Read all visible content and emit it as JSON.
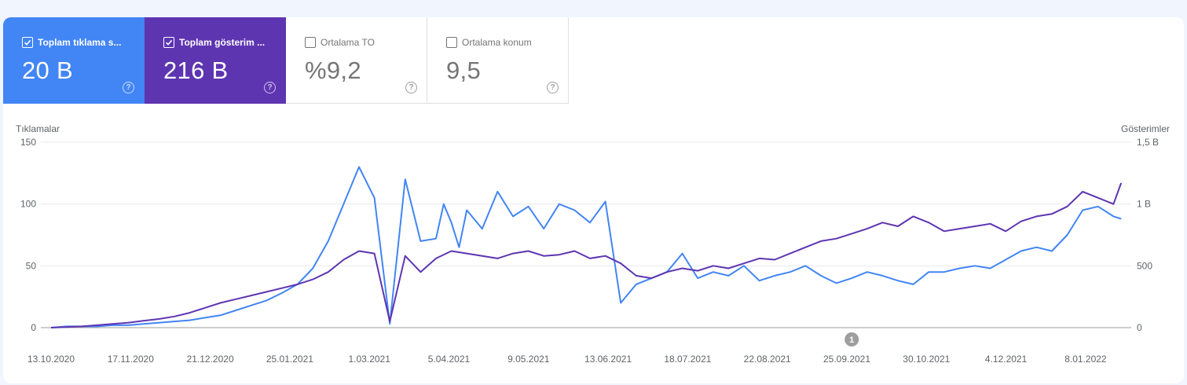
{
  "metrics": [
    {
      "label": "Toplam tıklama sayısı",
      "display": "Toplam tıklama s...",
      "value": "20 B",
      "checked": true,
      "color": "#4285f4"
    },
    {
      "label": "Toplam gösterim sayısı",
      "display": "Toplam gösterim ...",
      "value": "216 B",
      "checked": true,
      "color": "#5e35b1"
    },
    {
      "label": "Ortalama TO",
      "display": "Ortalama TO",
      "value": "%9,2",
      "checked": false
    },
    {
      "label": "Ortalama konum",
      "display": "Ortalama konum",
      "value": "9,5",
      "checked": false
    }
  ],
  "help_glyph": "?",
  "chart_data": {
    "type": "line",
    "ylabel_left": "Tıklamalar",
    "ylabel_right": "Gösterimler",
    "y_left_ticks": [
      "0",
      "50",
      "100",
      "150"
    ],
    "y_left_range": [
      0,
      150
    ],
    "y_right_ticks": [
      "0",
      "500",
      "1 B",
      "1,5 B"
    ],
    "y_right_range": [
      0,
      1500
    ],
    "x_ticks": [
      "13.10.2020",
      "17.11.2020",
      "21.12.2020",
      "25.01.2021",
      "1.03.2021",
      "5.04.2021",
      "9.05.2021",
      "13.06.2021",
      "18.07.2021",
      "22.08.2021",
      "25.09.2021",
      "30.10.2021",
      "4.12.2021",
      "8.01.2022"
    ],
    "x_range_weeks": [
      0,
      70
    ],
    "annotation": {
      "label": "1",
      "week": 52
    },
    "legend": "none",
    "grid": true,
    "series": [
      {
        "name": "Tıklamalar",
        "axis": "left",
        "color": "#4285f4",
        "x_weeks": [
          0,
          1,
          2,
          3,
          4,
          5,
          6,
          7,
          8,
          9,
          10,
          11,
          12,
          13,
          14,
          15,
          16,
          17,
          18,
          19,
          20,
          21,
          22,
          23,
          24,
          25,
          25.5,
          26,
          26.5,
          27,
          28,
          29,
          30,
          31,
          32,
          33,
          34,
          35,
          36,
          37,
          38,
          39,
          40,
          41,
          42,
          43,
          44,
          45,
          46,
          47,
          48,
          49,
          50,
          51,
          52,
          53,
          54,
          55,
          56,
          57,
          58,
          59,
          60,
          61,
          62,
          63,
          64,
          65,
          66,
          67,
          68,
          69,
          69.5
        ],
        "values": [
          0,
          1,
          1,
          1,
          2,
          2,
          3,
          4,
          5,
          6,
          8,
          10,
          14,
          18,
          22,
          28,
          35,
          48,
          70,
          100,
          130,
          105,
          3,
          120,
          70,
          72,
          100,
          85,
          65,
          95,
          80,
          110,
          90,
          98,
          80,
          100,
          95,
          85,
          102,
          20,
          35,
          40,
          45,
          60,
          40,
          45,
          42,
          50,
          38,
          42,
          45,
          50,
          42,
          36,
          40,
          45,
          42,
          38,
          35,
          45,
          45,
          48,
          50,
          48,
          55,
          62,
          65,
          62,
          75,
          95,
          98,
          90,
          88
        ]
      },
      {
        "name": "Gösterimler",
        "axis": "right",
        "color": "#5e35b1",
        "x_weeks": [
          0,
          1,
          2,
          3,
          4,
          5,
          6,
          7,
          8,
          9,
          10,
          11,
          12,
          13,
          14,
          15,
          16,
          17,
          18,
          19,
          20,
          21,
          22,
          23,
          24,
          25,
          26,
          27,
          28,
          29,
          30,
          31,
          32,
          33,
          34,
          35,
          36,
          37,
          38,
          39,
          40,
          41,
          42,
          43,
          44,
          45,
          46,
          47,
          48,
          49,
          50,
          51,
          52,
          53,
          54,
          55,
          56,
          57,
          58,
          59,
          60,
          61,
          62,
          63,
          64,
          65,
          66,
          67,
          68,
          69,
          69.5
        ],
        "values": [
          0,
          5,
          10,
          20,
          30,
          40,
          55,
          70,
          90,
          120,
          160,
          200,
          230,
          260,
          290,
          320,
          350,
          390,
          450,
          550,
          620,
          600,
          50,
          580,
          450,
          560,
          620,
          600,
          580,
          560,
          600,
          620,
          580,
          590,
          620,
          560,
          580,
          520,
          420,
          400,
          450,
          480,
          460,
          500,
          480,
          520,
          560,
          550,
          600,
          650,
          700,
          720,
          760,
          800,
          850,
          820,
          900,
          850,
          780,
          800,
          820,
          840,
          780,
          860,
          900,
          920,
          980,
          1100,
          1050,
          1000,
          1170
        ]
      }
    ]
  }
}
